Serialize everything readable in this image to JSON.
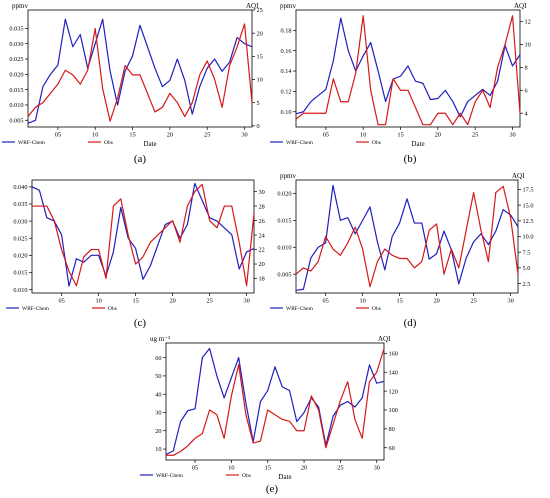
{
  "colors": {
    "wrf": "#1f1fbf",
    "obs": "#d61818"
  },
  "chart_data": [
    {
      "id": "a",
      "type": "line",
      "caption": "(a)",
      "left_unit": "ppmv",
      "right_unit": "AQI",
      "xlabel": "Date",
      "xlim": [
        1,
        31
      ],
      "xticks": [
        5,
        10,
        15,
        20,
        25,
        30
      ],
      "xtick_labels": [
        "05",
        "10",
        "15",
        "20",
        "25",
        "30"
      ],
      "ylim": [
        0.0028,
        0.041
      ],
      "yticks": [
        0.005,
        0.01,
        0.015,
        0.02,
        0.025,
        0.03,
        0.035
      ],
      "ytick_labels": [
        "0.005",
        "0.010",
        "0.015",
        "0.020",
        "0.025",
        "0.030",
        "0.035"
      ],
      "y2lim": [
        -0.25,
        25
      ],
      "y2ticks": [
        0,
        5,
        10,
        15,
        20,
        25
      ],
      "y2tick_labels": [
        "0",
        "5",
        "10",
        "15",
        "20",
        "25"
      ],
      "legend": [
        {
          "name": "WRF-Chem"
        },
        {
          "name": "Obs"
        }
      ],
      "series": [
        {
          "name": "WRF-Chem",
          "axis": "left",
          "x": [
            1,
            2,
            3,
            4,
            5,
            6,
            7,
            8,
            9,
            10,
            11,
            12,
            13,
            14,
            15,
            16,
            17,
            18,
            19,
            20,
            21,
            22,
            23,
            24,
            25,
            26,
            27,
            28,
            29,
            30,
            31
          ],
          "values": [
            0.004,
            0.005,
            0.016,
            0.02,
            0.023,
            0.038,
            0.029,
            0.033,
            0.022,
            0.03,
            0.038,
            0.021,
            0.01,
            0.021,
            0.026,
            0.036,
            0.029,
            0.022,
            0.016,
            0.018,
            0.025,
            0.018,
            0.007,
            0.016,
            0.022,
            0.025,
            0.021,
            0.024,
            0.032,
            0.03,
            0.029
          ]
        },
        {
          "name": "Obs",
          "axis": "right",
          "x": [
            1,
            2,
            3,
            4,
            5,
            6,
            7,
            8,
            9,
            10,
            11,
            12,
            13,
            14,
            15,
            16,
            17,
            18,
            19,
            20,
            21,
            22,
            23,
            24,
            25,
            26,
            27,
            28,
            29,
            30,
            31
          ],
          "values": [
            2,
            4,
            5,
            7,
            9,
            12,
            11,
            9,
            12,
            21,
            8,
            1,
            6,
            13,
            11,
            11,
            7,
            3,
            4,
            7,
            5,
            2,
            5,
            11,
            14,
            10,
            4,
            13,
            17,
            22,
            5
          ]
        }
      ]
    },
    {
      "id": "b",
      "type": "line",
      "caption": "(b)",
      "left_unit": "ppmv",
      "right_unit": "AQI",
      "xlabel": "Date",
      "xlim": [
        1,
        31
      ],
      "xticks": [
        5,
        10,
        15,
        20,
        25,
        30
      ],
      "xtick_labels": [
        "05",
        "10",
        "15",
        "20",
        "25",
        "30"
      ],
      "ylim": [
        0.085,
        0.2
      ],
      "yticks": [
        0.1,
        0.12,
        0.14,
        0.16,
        0.18
      ],
      "ytick_labels": [
        "0.10",
        "0.12",
        "0.14",
        "0.16",
        "0.18"
      ],
      "y2lim": [
        2.8,
        13
      ],
      "y2ticks": [
        4,
        6,
        8,
        10,
        12
      ],
      "y2tick_labels": [
        "4",
        "6",
        "8",
        "10",
        "12"
      ],
      "legend": [
        {
          "name": "WRF-Chem"
        },
        {
          "name": "Obs"
        }
      ],
      "series": [
        {
          "name": "WRF-Chem",
          "axis": "left",
          "x": [
            1,
            2,
            3,
            4,
            5,
            6,
            7,
            8,
            9,
            10,
            11,
            12,
            13,
            14,
            15,
            16,
            17,
            18,
            19,
            20,
            21,
            22,
            23,
            24,
            25,
            26,
            27,
            28,
            29,
            30,
            31
          ],
          "values": [
            0.098,
            0.1,
            0.11,
            0.116,
            0.122,
            0.15,
            0.192,
            0.16,
            0.14,
            0.155,
            0.168,
            0.14,
            0.11,
            0.132,
            0.135,
            0.145,
            0.13,
            0.128,
            0.112,
            0.113,
            0.121,
            0.11,
            0.095,
            0.11,
            0.116,
            0.122,
            0.116,
            0.13,
            0.165,
            0.145,
            0.156
          ]
        },
        {
          "name": "Obs",
          "axis": "right",
          "x": [
            1,
            2,
            3,
            4,
            5,
            6,
            7,
            8,
            9,
            10,
            11,
            12,
            13,
            14,
            15,
            16,
            17,
            18,
            19,
            20,
            21,
            22,
            23,
            24,
            25,
            26,
            27,
            28,
            29,
            30,
            31
          ],
          "values": [
            3.5,
            4,
            4,
            4,
            4,
            7,
            5,
            5,
            7.5,
            12.5,
            6,
            3,
            3,
            7,
            6,
            6,
            4.5,
            3,
            3,
            4,
            4,
            3,
            4,
            3,
            5,
            6,
            4.5,
            8,
            10,
            12.5,
            4
          ]
        }
      ]
    },
    {
      "id": "c",
      "type": "line",
      "caption": "(c)",
      "left_unit": "",
      "right_unit": "",
      "xlabel": "",
      "xlim": [
        1,
        31
      ],
      "xticks": [
        5,
        10,
        15,
        20,
        25,
        30
      ],
      "xtick_labels": [
        "05",
        "10",
        "15",
        "20",
        "25",
        "30"
      ],
      "ylim": [
        0.009,
        0.042
      ],
      "yticks": [
        0.01,
        0.015,
        0.02,
        0.025,
        0.03,
        0.035,
        0.04
      ],
      "ytick_labels": [
        "0.010",
        "0.015",
        "0.020",
        "0.025",
        "0.030",
        "0.035",
        "0.040"
      ],
      "y2lim": [
        16,
        31.6
      ],
      "y2ticks": [
        18,
        20,
        22,
        24,
        26,
        28,
        30
      ],
      "y2tick_labels": [
        "18",
        "20",
        "22",
        "24",
        "26",
        "28",
        "30"
      ],
      "legend": [
        {
          "name": "WRF-Chem"
        },
        {
          "name": "Obs"
        }
      ],
      "series": [
        {
          "name": "WRF-Chem",
          "axis": "left",
          "x": [
            1,
            2,
            3,
            4,
            5,
            6,
            7,
            8,
            9,
            10,
            11,
            12,
            13,
            14,
            15,
            16,
            17,
            18,
            19,
            20,
            21,
            22,
            23,
            24,
            25,
            26,
            27,
            28,
            29,
            30,
            31
          ],
          "values": [
            0.04,
            0.039,
            0.031,
            0.03,
            0.026,
            0.011,
            0.019,
            0.018,
            0.02,
            0.02,
            0.014,
            0.021,
            0.034,
            0.025,
            0.022,
            0.013,
            0.017,
            0.023,
            0.029,
            0.03,
            0.025,
            0.029,
            0.041,
            0.036,
            0.031,
            0.03,
            0.028,
            0.026,
            0.016,
            0.021,
            0.022
          ]
        },
        {
          "name": "Obs",
          "axis": "right",
          "x": [
            1,
            2,
            3,
            4,
            5,
            6,
            7,
            8,
            9,
            10,
            11,
            12,
            13,
            14,
            15,
            16,
            17,
            18,
            19,
            20,
            21,
            22,
            23,
            24,
            25,
            26,
            27,
            28,
            29,
            30,
            31
          ],
          "values": [
            28,
            28,
            28,
            26,
            22,
            19,
            17,
            21,
            22,
            22,
            18,
            28,
            29,
            24,
            20,
            21,
            23,
            24,
            25,
            26,
            23,
            28,
            30,
            31,
            26,
            25,
            28,
            28,
            23,
            17,
            27
          ]
        }
      ]
    },
    {
      "id": "d",
      "type": "line",
      "caption": "(d)",
      "left_unit": "ppmv",
      "right_unit": "AQI",
      "xlabel": "",
      "xlim": [
        1,
        31
      ],
      "xticks": [
        5,
        10,
        15,
        20,
        25,
        30
      ],
      "xtick_labels": [
        "05",
        "10",
        "15",
        "20",
        "25",
        "30"
      ],
      "ylim": [
        0.0015,
        0.0225
      ],
      "yticks": [
        0.005,
        0.01,
        0.015,
        0.02
      ],
      "ytick_labels": [
        "0.005",
        "0.010",
        "0.015",
        "0.020"
      ],
      "y2lim": [
        1,
        19
      ],
      "y2ticks": [
        2.5,
        5.0,
        7.5,
        10.0,
        12.5,
        15.0,
        17.5
      ],
      "y2tick_labels": [
        "2.5",
        "5.0",
        "7.5",
        "10.0",
        "12.5",
        "15.0",
        "17.5"
      ],
      "legend": [
        {
          "name": "WRF-Chem"
        },
        {
          "name": "Obs"
        }
      ],
      "series": [
        {
          "name": "WRF-Chem",
          "axis": "left",
          "x": [
            1,
            2,
            3,
            4,
            5,
            6,
            7,
            8,
            9,
            10,
            11,
            12,
            13,
            14,
            15,
            16,
            17,
            18,
            19,
            20,
            21,
            22,
            23,
            24,
            25,
            26,
            27,
            28,
            29,
            30,
            31
          ],
          "values": [
            0.002,
            0.0022,
            0.008,
            0.01,
            0.0108,
            0.0215,
            0.015,
            0.0155,
            0.0125,
            0.015,
            0.0175,
            0.011,
            0.0058,
            0.012,
            0.0145,
            0.019,
            0.0145,
            0.0145,
            0.0078,
            0.0088,
            0.013,
            0.0095,
            0.0032,
            0.008,
            0.011,
            0.0125,
            0.0105,
            0.013,
            0.017,
            0.016,
            0.0138
          ]
        },
        {
          "name": "Obs",
          "axis": "right",
          "x": [
            1,
            2,
            3,
            4,
            5,
            6,
            7,
            8,
            9,
            10,
            11,
            12,
            13,
            14,
            15,
            16,
            17,
            18,
            19,
            20,
            21,
            22,
            23,
            24,
            25,
            26,
            27,
            28,
            29,
            30,
            31
          ],
          "values": [
            4,
            5,
            4.5,
            6,
            10,
            8,
            7,
            9,
            11.5,
            8,
            2,
            6,
            8,
            7,
            6.5,
            6.5,
            5,
            6,
            11,
            12,
            4,
            8,
            5,
            11,
            17,
            11,
            6,
            17,
            18,
            13,
            4
          ]
        }
      ]
    },
    {
      "id": "e",
      "type": "line",
      "caption": "(e)",
      "left_unit": "ug m⁻³",
      "right_unit": "AQI",
      "xlabel": "Date",
      "xlim": [
        1,
        31
      ],
      "xticks": [
        5,
        10,
        15,
        20,
        25,
        30
      ],
      "xtick_labels": [
        "05",
        "10",
        "15",
        "20",
        "25",
        "30"
      ],
      "ylim": [
        4,
        68
      ],
      "yticks": [
        10,
        20,
        30,
        40,
        50,
        60
      ],
      "ytick_labels": [
        "10",
        "20",
        "30",
        "40",
        "50",
        "60"
      ],
      "y2lim": [
        47,
        171
      ],
      "y2ticks": [
        60,
        80,
        100,
        120,
        140,
        160
      ],
      "y2tick_labels": [
        "60",
        "80",
        "100",
        "120",
        "140",
        "160"
      ],
      "legend": [
        {
          "name": "WRF-Chem"
        },
        {
          "name": "Obs"
        }
      ],
      "series": [
        {
          "name": "WRF-Chem",
          "axis": "left",
          "x": [
            1,
            2,
            3,
            4,
            5,
            6,
            7,
            8,
            9,
            10,
            11,
            12,
            13,
            14,
            15,
            16,
            17,
            18,
            19,
            20,
            21,
            22,
            23,
            24,
            25,
            26,
            27,
            28,
            29,
            30,
            31
          ],
          "values": [
            7,
            9,
            25,
            31,
            32,
            60,
            65,
            50,
            38,
            49,
            60,
            35,
            14,
            36,
            42,
            55,
            44,
            42,
            25,
            30,
            38,
            33,
            12,
            28,
            34,
            36,
            33,
            38,
            56,
            46,
            47
          ]
        },
        {
          "name": "Obs",
          "axis": "right",
          "x": [
            1,
            2,
            3,
            4,
            5,
            6,
            7,
            8,
            9,
            10,
            11,
            12,
            13,
            14,
            15,
            16,
            17,
            18,
            19,
            20,
            21,
            22,
            23,
            24,
            25,
            26,
            27,
            28,
            29,
            30,
            31
          ],
          "values": [
            52,
            52,
            56,
            62,
            70,
            75,
            100,
            95,
            70,
            115,
            148,
            95,
            65,
            67,
            100,
            95,
            90,
            88,
            78,
            78,
            115,
            100,
            60,
            85,
            110,
            130,
            90,
            70,
            130,
            140,
            165
          ]
        }
      ]
    }
  ]
}
